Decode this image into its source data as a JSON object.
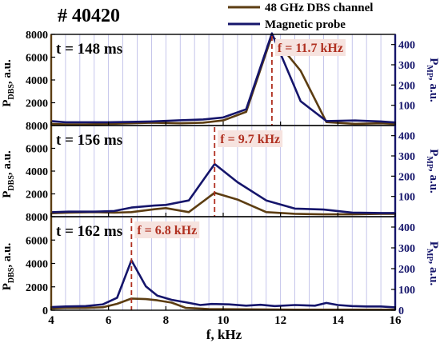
{
  "chart_data": {
    "type": "line",
    "shot_label": "# 40420",
    "xlabel": "f, kHz",
    "xlim": [
      4,
      16
    ],
    "x_ticks": [
      4,
      6,
      8,
      10,
      12,
      14,
      16
    ],
    "legend": {
      "position": "top-right",
      "entries": [
        {
          "label": "48 GHz DBS channel",
          "color": "#5c3d12"
        },
        {
          "label": "Magnetic probe",
          "color": "#15156b"
        }
      ]
    },
    "colors": {
      "dbs": "#5c3d12",
      "mp": "#15156b",
      "marker": "#b03020",
      "grid": "#b7b7e6",
      "left_axis": "#5c3d12",
      "right_axis": "#15156b"
    },
    "ylabel_left": {
      "main": "P",
      "sub": "DBS",
      "suffix": ", a.u."
    },
    "ylabel_right": {
      "main": "P",
      "sub": "MP",
      "suffix": ", a.u."
    },
    "panels": [
      {
        "time_label": "t = 148 ms",
        "peak_label": "f = 11.7 kHz",
        "peak_f": 11.7,
        "left_ylim": [
          0,
          8000
        ],
        "left_ticks": [
          "8000",
          "6000",
          "4000",
          "2000"
        ],
        "right_ylim": [
          0,
          450
        ],
        "right_ticks": [
          "400",
          "300",
          "200",
          "100"
        ],
        "series": [
          {
            "name": "48 GHz DBS channel",
            "axis": "left",
            "x": [
              4.0,
              4.5,
              5.2,
              6.0,
              6.8,
              7.5,
              8.5,
              9.3,
              10.0,
              10.8,
              11.7,
              12.7,
              13.6,
              14.6,
              15.5,
              16.0
            ],
            "y": [
              150,
              100,
              100,
              150,
              200,
              250,
              200,
              250,
              450,
              1200,
              7900,
              4800,
              300,
              150,
              200,
              150
            ]
          },
          {
            "name": "Magnetic probe",
            "axis": "right",
            "x": [
              4.0,
              4.5,
              5.2,
              6.0,
              6.8,
              7.5,
              8.5,
              9.3,
              10.0,
              10.8,
              11.7,
              12.7,
              13.6,
              14.6,
              15.5,
              16.0
            ],
            "y": [
              22,
              16,
              16,
              16,
              18,
              20,
              26,
              30,
              40,
              80,
              455,
              120,
              22,
              25,
              20,
              15
            ]
          }
        ]
      },
      {
        "time_label": "t = 156 ms",
        "peak_label": "f = 9.7 kHz",
        "peak_f": 9.7,
        "left_ylim": [
          0,
          8000
        ],
        "left_ticks": [
          "8000",
          "6000",
          "4000",
          "2000"
        ],
        "right_ylim": [
          0,
          450
        ],
        "right_ticks": [
          "400",
          "300",
          "200",
          "100"
        ],
        "series": [
          {
            "name": "48 GHz DBS channel",
            "axis": "left",
            "x": [
              4.0,
              4.6,
              5.5,
              6.2,
              6.8,
              7.6,
              8.0,
              8.8,
              9.7,
              10.5,
              11.5,
              12.5,
              13.5,
              14.5,
              15.5,
              16.0
            ],
            "y": [
              300,
              350,
              400,
              350,
              400,
              650,
              750,
              400,
              2100,
              1500,
              400,
              250,
              200,
              200,
              250,
              250
            ]
          },
          {
            "name": "Magnetic probe",
            "axis": "right",
            "x": [
              4.0,
              4.6,
              5.5,
              6.2,
              6.8,
              7.6,
              8.0,
              8.8,
              9.7,
              10.5,
              11.5,
              12.5,
              13.5,
              14.5,
              15.5,
              16.0
            ],
            "y": [
              22,
              25,
              25,
              28,
              45,
              55,
              58,
              80,
              260,
              170,
              80,
              40,
              35,
              20,
              18,
              18
            ]
          }
        ]
      },
      {
        "time_label": "t = 162 ms",
        "peak_label": "f = 6.8 kHz",
        "peak_f": 6.8,
        "left_ylim": [
          0,
          8000
        ],
        "left_ticks": [
          "8000",
          "6000",
          "4000",
          "2000",
          "0"
        ],
        "right_ylim": [
          0,
          450
        ],
        "right_ticks": [
          "400",
          "300",
          "200",
          "100",
          "0"
        ],
        "series": [
          {
            "name": "48 GHz DBS channel",
            "axis": "left",
            "x": [
              4.0,
              4.5,
              5.2,
              5.8,
              6.3,
              6.8,
              7.3,
              7.7,
              8.2,
              8.7,
              9.5,
              10.5,
              11.5,
              12.5,
              13.5,
              14.5,
              15.5,
              16.0
            ],
            "y": [
              150,
              200,
              200,
              250,
              550,
              1000,
              950,
              850,
              650,
              200,
              100,
              80,
              60,
              50,
              50,
              50,
              50,
              50
            ]
          },
          {
            "name": "Magnetic probe",
            "axis": "right",
            "x": [
              4.0,
              4.5,
              5.2,
              5.8,
              6.3,
              6.8,
              7.3,
              7.7,
              8.2,
              8.7,
              9.2,
              9.6,
              10.2,
              10.8,
              11.3,
              11.8,
              12.5,
              13.2,
              13.6,
              14.0,
              14.5,
              15.0,
              15.5,
              16.0
            ],
            "y": [
              15,
              18,
              20,
              28,
              60,
              240,
              115,
              70,
              50,
              38,
              25,
              30,
              28,
              22,
              26,
              20,
              25,
              22,
              35,
              25,
              20,
              18,
              18,
              14
            ]
          }
        ]
      }
    ]
  }
}
